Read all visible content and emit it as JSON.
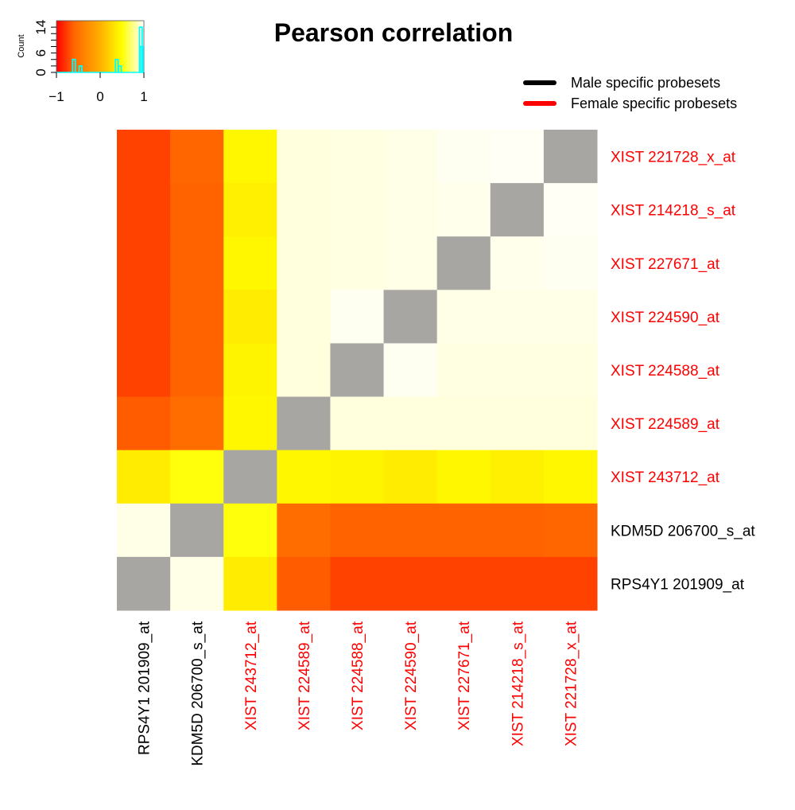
{
  "chart_data": {
    "type": "heatmap",
    "title": "Pearson correlation",
    "xlabel": "",
    "ylabel": "",
    "grid": false,
    "legend_placement": "top-right",
    "columns": [
      {
        "label": "RPS4Y1 201909_at",
        "group": "male"
      },
      {
        "label": "KDM5D 206700_s_at",
        "group": "male"
      },
      {
        "label": "XIST 243712_at",
        "group": "female"
      },
      {
        "label": "XIST 224589_at",
        "group": "female"
      },
      {
        "label": "XIST 224588_at",
        "group": "female"
      },
      {
        "label": "XIST 224590_at",
        "group": "female"
      },
      {
        "label": "XIST 227671_at",
        "group": "female"
      },
      {
        "label": "XIST 214218_s_at",
        "group": "female"
      },
      {
        "label": "XIST 221728_x_at",
        "group": "female"
      }
    ],
    "rows": [
      {
        "label": "XIST 221728_x_at",
        "group": "female"
      },
      {
        "label": "XIST 214218_s_at",
        "group": "female"
      },
      {
        "label": "XIST 227671_at",
        "group": "female"
      },
      {
        "label": "XIST 224590_at",
        "group": "female"
      },
      {
        "label": "XIST 224588_at",
        "group": "female"
      },
      {
        "label": "XIST 224589_at",
        "group": "female"
      },
      {
        "label": "XIST 243712_at",
        "group": "female"
      },
      {
        "label": "KDM5D 206700_s_at",
        "group": "male"
      },
      {
        "label": "RPS4Y1 201909_at",
        "group": "male"
      }
    ],
    "values": [
      [
        -0.74,
        -0.6,
        0.45,
        0.93,
        0.94,
        0.95,
        0.97,
        0.98,
        null
      ],
      [
        -0.74,
        -0.61,
        0.4,
        0.93,
        0.94,
        0.95,
        0.96,
        null,
        0.98
      ],
      [
        -0.74,
        -0.61,
        0.45,
        0.93,
        0.94,
        0.95,
        null,
        0.96,
        0.97
      ],
      [
        -0.74,
        -0.61,
        0.38,
        0.93,
        0.97,
        null,
        0.95,
        0.95,
        0.95
      ],
      [
        -0.74,
        -0.61,
        0.43,
        0.93,
        null,
        0.97,
        0.94,
        0.94,
        0.94
      ],
      [
        -0.64,
        -0.55,
        0.45,
        null,
        0.93,
        0.93,
        0.93,
        0.93,
        0.93
      ],
      [
        0.38,
        0.52,
        null,
        0.45,
        0.43,
        0.38,
        0.45,
        0.4,
        0.45
      ],
      [
        0.95,
        null,
        0.52,
        -0.55,
        -0.61,
        -0.61,
        -0.61,
        -0.61,
        -0.6
      ],
      [
        null,
        0.95,
        0.38,
        -0.64,
        -0.74,
        -0.74,
        -0.74,
        -0.74,
        -0.74
      ]
    ],
    "diagonal_color": "#A8A6A2",
    "color_scale": {
      "min": -1,
      "max": 1,
      "stops": [
        {
          "value": -1,
          "color": "#FF0000"
        },
        {
          "value": -0.6,
          "color": "#FF6600"
        },
        {
          "value": 0.0,
          "color": "#FFB000"
        },
        {
          "value": 0.5,
          "color": "#FFFF00"
        },
        {
          "value": 0.8,
          "color": "#FFFFA0"
        },
        {
          "value": 1.0,
          "color": "#FFFFFF"
        }
      ]
    },
    "color_key": {
      "xticks": [
        -1,
        0,
        1
      ],
      "xtick_labels": [
        "−1",
        "0",
        "1"
      ],
      "ylabel": "Count",
      "yticks": [
        0,
        6,
        14
      ],
      "ylim": [
        0,
        16
      ],
      "xlim": [
        -1,
        1
      ],
      "histogram_color": "#00FFFF",
      "histogram": [
        {
          "x": -0.6,
          "count": 4
        },
        {
          "x": -0.45,
          "count": 2
        },
        {
          "x": 0.38,
          "count": 4
        },
        {
          "x": 0.45,
          "count": 2
        },
        {
          "x": 0.93,
          "count": 14
        },
        {
          "x": 0.95,
          "count": 8
        }
      ]
    },
    "legend": [
      {
        "label": "Male specific probesets",
        "color": "#000000"
      },
      {
        "label": "Female specific probesets",
        "color": "#FF0000"
      }
    ],
    "group_colors": {
      "male": "#000000",
      "female": "#FF0000"
    }
  }
}
